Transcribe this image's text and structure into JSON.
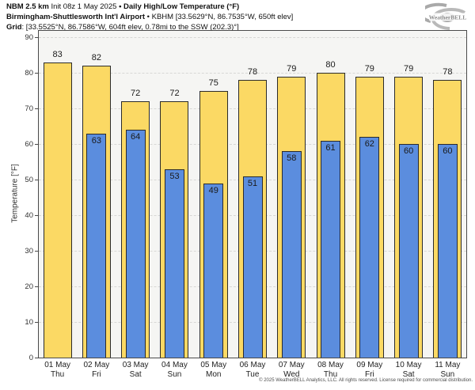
{
  "header": {
    "line1": [
      {
        "text": "NBM 2.5 km"
      },
      {
        "text": " Init 08z 1 May 2025 "
      },
      {
        "text": "• Daily High/Low Temperature (°F)"
      }
    ],
    "line2": [
      {
        "text": "Birmingham-Shuttlesworth Int'l Airport"
      },
      {
        "text": " • KBHM [33.5629°N, 86.7535°W, 650ft elev]"
      }
    ],
    "line3": [
      {
        "text": "Grid"
      },
      {
        "text": ": [33.5525°N, 86.7586°W, 604ft elev, 0.78mi to the SSW (202.3)°]"
      }
    ]
  },
  "logo": {
    "text": "WeatherBELL"
  },
  "footer": {
    "credit": "© 2025 WeatherBELL Analytics, LLC. All rights reserved. License required for commercial distribution."
  },
  "chart_data": {
    "type": "bar",
    "title": "Daily High/Low Temperature (°F)",
    "categories": [
      {
        "date": "01 May",
        "day": "Thu"
      },
      {
        "date": "02 May",
        "day": "Fri"
      },
      {
        "date": "03 May",
        "day": "Sat"
      },
      {
        "date": "04 May",
        "day": "Sun"
      },
      {
        "date": "05 May",
        "day": "Mon"
      },
      {
        "date": "06 May",
        "day": "Tue"
      },
      {
        "date": "07 May",
        "day": "Wed"
      },
      {
        "date": "08 May",
        "day": "Thu"
      },
      {
        "date": "09 May",
        "day": "Fri"
      },
      {
        "date": "10 May",
        "day": "Sat"
      },
      {
        "date": "11 May",
        "day": "Sun"
      }
    ],
    "series": [
      {
        "name": "High",
        "color": "#fbd964",
        "values": [
          83,
          82,
          72,
          72,
          75,
          78,
          79,
          80,
          79,
          79,
          78
        ]
      },
      {
        "name": "Low",
        "color": "#5b8dde",
        "values": [
          null,
          63,
          64,
          53,
          49,
          51,
          58,
          61,
          62,
          60,
          60
        ]
      }
    ],
    "ylabel": "Temperature [°F]",
    "ylim": [
      0,
      90
    ],
    "yticks": [
      0,
      10,
      20,
      30,
      40,
      50,
      60,
      70,
      80,
      90
    ],
    "grid": "horizontal-dashed",
    "legend": "none"
  }
}
